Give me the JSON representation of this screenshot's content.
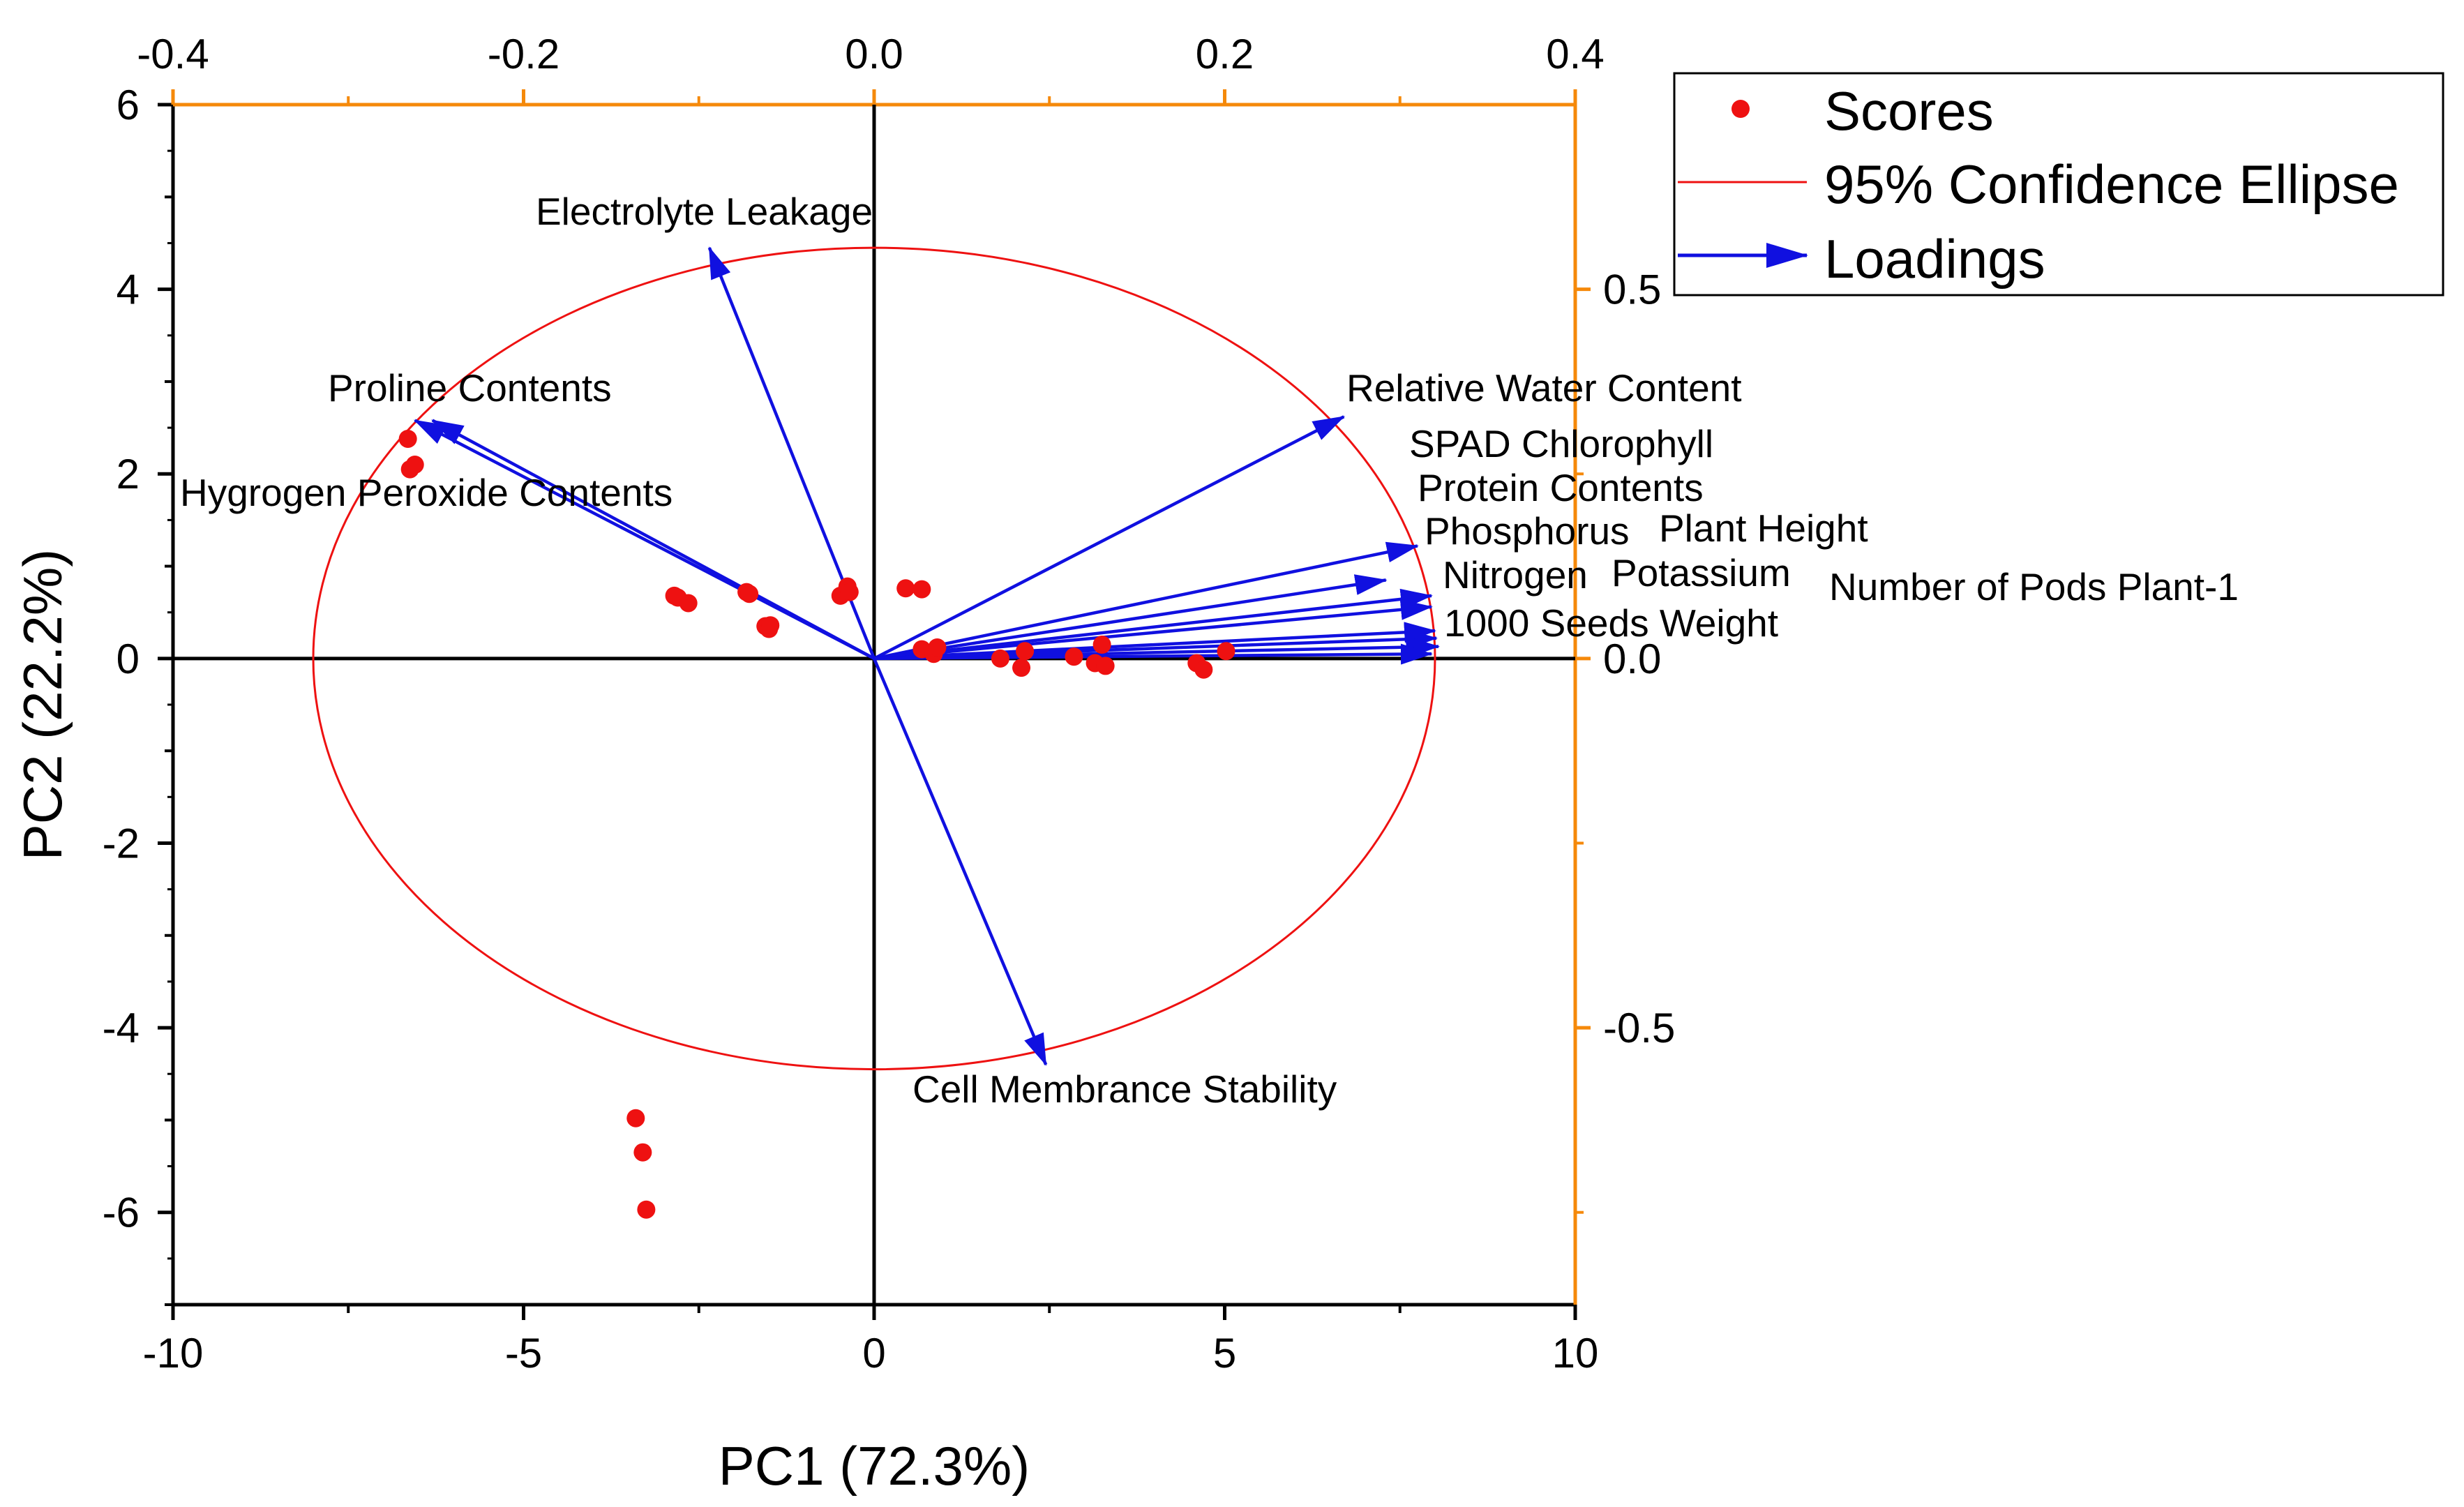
{
  "chart_data": {
    "type": "scatter",
    "subtype": "PCA biplot",
    "title": "",
    "xlabel": "PC1 (72.3%)",
    "ylabel": "PC2 (22.2%)",
    "xlim": [
      -10,
      10
    ],
    "ylim": [
      -7,
      6
    ],
    "x_ticks": [
      "-10",
      "-5",
      "0",
      "5",
      "10"
    ],
    "x_tick_values": [
      -10,
      -5,
      0,
      5,
      10
    ],
    "y_ticks": [
      "-6",
      "-4",
      "-2",
      "0",
      "2",
      "4",
      "6"
    ],
    "y_tick_values": [
      -6,
      -4,
      -2,
      0,
      2,
      4,
      6
    ],
    "top_axis": {
      "lim": [
        -0.4,
        0.4
      ],
      "ticks": [
        "-0.4",
        "-0.2",
        "0.0",
        "0.2",
        "0.4"
      ],
      "tick_values": [
        -0.4,
        -0.2,
        0.0,
        0.2,
        0.4
      ],
      "color": "#f5890a"
    },
    "right_axis": {
      "lim": [
        -0.875,
        0.75
      ],
      "ticks": [
        "-0.5",
        "0.0",
        "0.5"
      ],
      "tick_values": [
        -0.5,
        0.0,
        0.5
      ],
      "color": "#f5890a"
    },
    "legend": {
      "position": "top-right, outside",
      "entries": [
        {
          "name": "Scores",
          "symbol": "dot",
          "color": "#ee1111"
        },
        {
          "name": "95% Confidence Ellipse",
          "symbol": "line",
          "color": "#ee1111"
        },
        {
          "name": "Loadings",
          "symbol": "arrow",
          "color": "#1010e0"
        }
      ]
    },
    "ellipse": {
      "center": [
        0,
        0
      ],
      "rx": 8.0,
      "ry": 4.45,
      "color": "#ee1111"
    },
    "series": [
      {
        "name": "Scores",
        "color": "#ee1111",
        "points": [
          [
            -6.65,
            2.38
          ],
          [
            -6.62,
            2.05
          ],
          [
            -6.55,
            2.1
          ],
          [
            -2.85,
            0.68
          ],
          [
            -2.8,
            0.66
          ],
          [
            -2.65,
            0.6
          ],
          [
            -1.82,
            0.72
          ],
          [
            -1.78,
            0.7
          ],
          [
            -1.55,
            0.35
          ],
          [
            -1.5,
            0.32
          ],
          [
            -1.48,
            0.36
          ],
          [
            -0.48,
            0.68
          ],
          [
            -0.38,
            0.78
          ],
          [
            -0.35,
            0.72
          ],
          [
            0.45,
            0.76
          ],
          [
            0.68,
            0.75
          ],
          [
            0.68,
            0.1
          ],
          [
            0.85,
            0.05
          ],
          [
            0.9,
            0.12
          ],
          [
            1.8,
            0.0
          ],
          [
            2.1,
            -0.1
          ],
          [
            2.15,
            0.08
          ],
          [
            2.85,
            0.02
          ],
          [
            3.15,
            -0.05
          ],
          [
            3.25,
            0.15
          ],
          [
            3.3,
            -0.08
          ],
          [
            4.6,
            -0.05
          ],
          [
            4.7,
            -0.12
          ],
          [
            5.02,
            0.08
          ],
          [
            -3.4,
            -4.98
          ],
          [
            -3.3,
            -5.35
          ],
          [
            -3.25,
            -5.97
          ]
        ]
      },
      {
        "name": "Loadings",
        "color": "#1010e0",
        "vectors": [
          {
            "label": "Electrolyte Leakage",
            "x": -2.35,
            "y": 4.45
          },
          {
            "label": "Proline Contents",
            "x": -6.3,
            "y": 2.58
          },
          {
            "label": "Hygrogen Peroxide Contents",
            "x": -6.55,
            "y": 2.58
          },
          {
            "label": "Relative Water Content",
            "x": 6.7,
            "y": 2.62
          },
          {
            "label": "SPAD Chlorophyll",
            "x": 7.75,
            "y": 1.22
          },
          {
            "label": "Protein Contents",
            "x": 7.3,
            "y": 0.85
          },
          {
            "label": "Phosphorus",
            "x": 7.95,
            "y": 0.68
          },
          {
            "label": "Plant Height",
            "x": 7.95,
            "y": 0.56
          },
          {
            "label": "Nitrogen",
            "x": 8.0,
            "y": 0.3
          },
          {
            "label": "Potassium",
            "x": 8.02,
            "y": 0.22
          },
          {
            "label": "Number of Pods Plant-1",
            "x": 8.05,
            "y": 0.13
          },
          {
            "label": "1000 Seeds Weight",
            "x": 7.95,
            "y": 0.05
          },
          {
            "label": "Cell Membrance Stability",
            "x": 2.45,
            "y": -4.4
          }
        ]
      }
    ]
  }
}
